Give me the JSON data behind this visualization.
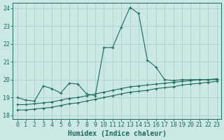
{
  "xlabel": "Humidex (Indice chaleur)",
  "bg_color": "#cce8e4",
  "grid_color": "#afd4cf",
  "line_color": "#1a6b60",
  "xlim": [
    -0.5,
    23.5
  ],
  "ylim": [
    17.8,
    24.3
  ],
  "yticks": [
    18,
    19,
    20,
    21,
    22,
    23,
    24
  ],
  "xticks": [
    0,
    1,
    2,
    3,
    4,
    5,
    6,
    7,
    8,
    9,
    10,
    11,
    12,
    13,
    14,
    15,
    16,
    17,
    18,
    19,
    20,
    21,
    22,
    23
  ],
  "series_main_x": [
    0,
    1,
    2,
    3,
    4,
    5,
    6,
    7,
    8,
    9,
    10,
    11,
    12,
    13,
    14,
    15,
    16,
    17,
    18,
    19,
    20,
    21,
    22,
    23
  ],
  "series_main_y": [
    19.0,
    18.85,
    18.8,
    19.65,
    19.5,
    19.25,
    19.8,
    19.75,
    19.2,
    19.1,
    21.8,
    21.8,
    22.95,
    24.05,
    23.7,
    21.1,
    20.7,
    20.0,
    19.95,
    20.0,
    20.0,
    20.0,
    20.0,
    20.0
  ],
  "series_mid_x": [
    0,
    1,
    2,
    3,
    4,
    5,
    6,
    7,
    8,
    9,
    10,
    11,
    12,
    13,
    14,
    15,
    16,
    17,
    18,
    19,
    20,
    21,
    22,
    23
  ],
  "series_mid_y": [
    18.6,
    18.6,
    18.65,
    18.7,
    18.75,
    18.85,
    18.95,
    19.0,
    19.1,
    19.2,
    19.3,
    19.4,
    19.5,
    19.6,
    19.65,
    19.7,
    19.75,
    19.8,
    19.85,
    19.9,
    19.95,
    20.0,
    20.0,
    20.05
  ],
  "series_low_x": [
    0,
    1,
    2,
    3,
    4,
    5,
    6,
    7,
    8,
    9,
    10,
    11,
    12,
    13,
    14,
    15,
    16,
    17,
    18,
    19,
    20,
    21,
    22,
    23
  ],
  "series_low_y": [
    18.3,
    18.3,
    18.35,
    18.4,
    18.45,
    18.55,
    18.65,
    18.7,
    18.8,
    18.9,
    19.0,
    19.1,
    19.2,
    19.3,
    19.35,
    19.4,
    19.5,
    19.55,
    19.6,
    19.7,
    19.75,
    19.8,
    19.85,
    19.9
  ],
  "font_color": "#1a6b60",
  "fontsize_ticks": 6,
  "fontsize_label": 7
}
